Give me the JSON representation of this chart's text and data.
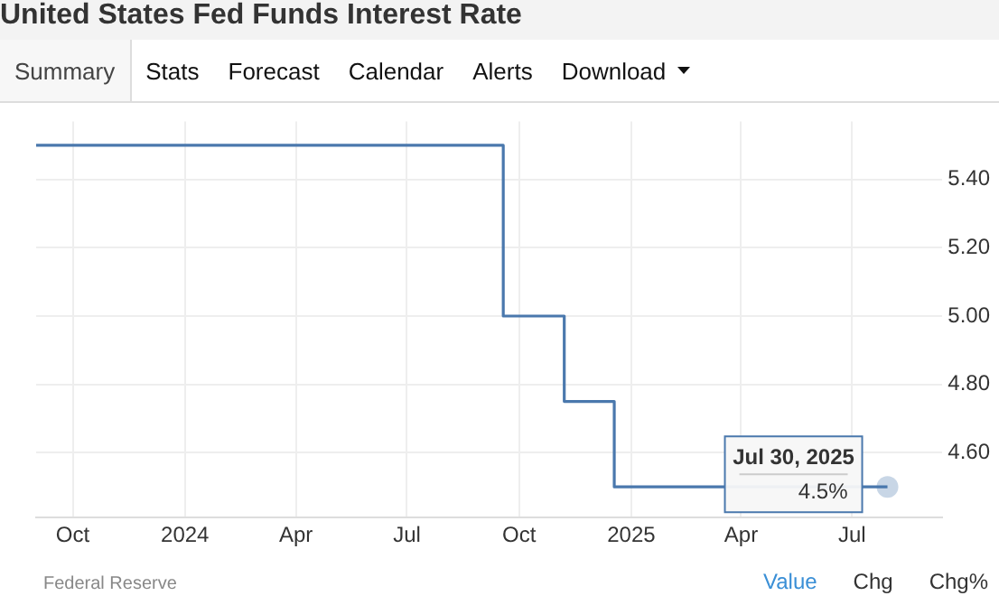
{
  "chart_data": {
    "type": "step",
    "title": "United States Fed Funds Interest Rate",
    "series": [
      {
        "color": "#4a78ad",
        "x": [
          "2023-09-01",
          "2024-09-18",
          "2024-11-07",
          "2024-12-18",
          "2025-07-30"
        ],
        "values": [
          5.5,
          5.0,
          4.75,
          4.5,
          4.5
        ]
      }
    ],
    "xlim": [
      "2023-09-01",
      "2025-09-13"
    ],
    "xticks": [
      {
        "value": "2023-10-01",
        "label": "Oct"
      },
      {
        "value": "2024-01-01",
        "label": "2024"
      },
      {
        "value": "2024-04-01",
        "label": "Apr"
      },
      {
        "value": "2024-07-01",
        "label": "Jul"
      },
      {
        "value": "2024-10-01",
        "label": "Oct"
      },
      {
        "value": "2025-01-01",
        "label": "2025"
      },
      {
        "value": "2025-04-01",
        "label": "Apr"
      },
      {
        "value": "2025-07-01",
        "label": "Jul"
      }
    ],
    "ylim": [
      4.41,
      5.57
    ],
    "yticks": [
      {
        "value": 4.6,
        "label": "4.60"
      },
      {
        "value": 4.8,
        "label": "4.80"
      },
      {
        "value": 5.0,
        "label": "5.00"
      },
      {
        "value": 5.2,
        "label": "5.20"
      },
      {
        "value": 5.4,
        "label": "5.40"
      }
    ],
    "grid": true,
    "marker": "none",
    "line_style": "solid",
    "annotations": [
      "Summary",
      "Stats",
      "Forecast",
      "Calendar",
      "Alerts",
      "Download",
      "Federal Reserve",
      "Value",
      "Chg",
      "Chg%",
      {
        "text": "Jul 30, 2025",
        "x": "2025-07-30",
        "y": 4.5
      },
      {
        "text": "4.5%",
        "x": "2025-07-30",
        "y": 4.5
      }
    ]
  }
}
